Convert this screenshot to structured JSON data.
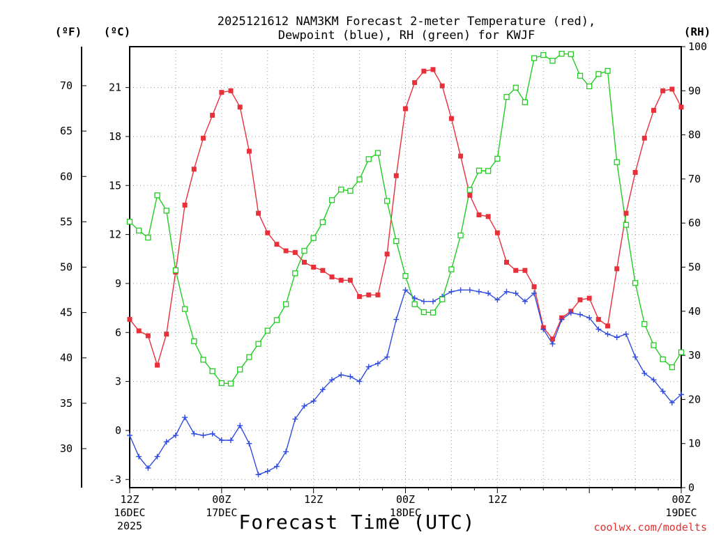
{
  "chart_data": {
    "type": "line",
    "title_line1": "2025121612 NAM3KM Forecast 2-meter Temperature (red),",
    "title_line2": "Dewpoint (blue), RH (green) for KWJF",
    "xlabel": "Forecast Time (UTC)",
    "credit": "coolwx.com/modelts",
    "units": {
      "fahrenheit": "(ºF)",
      "celsius": "(ºC)",
      "rh": "(RH)"
    },
    "x_hours_range": [
      0,
      72
    ],
    "ylim_celsius": [
      -3.5,
      23.5
    ],
    "ylim_rh": [
      0,
      100
    ],
    "x_ticks": [
      {
        "hour": 0,
        "line1": "12Z",
        "line2": "16DEC",
        "line3": "2025"
      },
      {
        "hour": 15,
        "line1": "00Z",
        "line2": "17DEC",
        "line3": ""
      },
      {
        "hour": 30,
        "line1": "12Z",
        "line2": "",
        "line3": ""
      },
      {
        "hour": 45,
        "line1": "00Z",
        "line2": "18DEC",
        "line3": ""
      },
      {
        "hour": 60,
        "line1": "12Z",
        "line2": "",
        "line3": ""
      },
      {
        "hour": 75,
        "line1": "00Z",
        "line2": "19DEC",
        "line3": ""
      }
    ],
    "celsius_ticks": [
      "-3",
      "0",
      "3",
      "6",
      "9",
      "12",
      "15",
      "18",
      "21"
    ],
    "fahrenheit_ticks": [
      "30",
      "35",
      "40",
      "45",
      "50",
      "55",
      "60",
      "65",
      "70"
    ],
    "rh_ticks": [
      "0",
      "10",
      "20",
      "30",
      "40",
      "50",
      "60",
      "70",
      "80",
      "90",
      "100"
    ],
    "series": [
      {
        "name": "2-meter Temperature (°C)",
        "color": "#e8303a",
        "marker": "filled-square",
        "values": [
          6.8,
          6.1,
          5.8,
          4.0,
          5.9,
          9.7,
          13.8,
          16.0,
          17.9,
          19.3,
          20.7,
          20.8,
          19.8,
          17.1,
          13.3,
          12.1,
          11.4,
          11.0,
          10.9,
          10.3,
          10.0,
          9.8,
          9.4,
          9.2,
          9.2,
          8.2,
          8.3,
          8.3,
          10.8,
          15.6,
          19.7,
          21.3,
          22.0,
          22.1,
          21.1,
          19.1,
          16.8,
          14.4,
          13.2,
          13.1,
          12.1,
          10.3,
          9.8,
          9.8,
          8.8,
          6.3,
          5.6,
          6.9,
          7.3,
          8.0,
          8.1,
          6.8,
          6.4,
          9.9,
          13.3,
          15.8,
          17.9,
          19.6,
          20.8,
          20.9,
          19.8
        ]
      },
      {
        "name": "Dewpoint (°C)",
        "color": "#2f4be0",
        "marker": "plus",
        "values": [
          -0.3,
          -1.6,
          -2.3,
          -1.6,
          -0.7,
          -0.3,
          0.8,
          -0.2,
          -0.3,
          -0.2,
          -0.6,
          -0.6,
          0.3,
          -0.8,
          -2.7,
          -2.5,
          -2.2,
          -1.3,
          0.7,
          1.5,
          1.8,
          2.5,
          3.1,
          3.4,
          3.3,
          3.0,
          3.9,
          4.1,
          4.5,
          6.8,
          8.6,
          8.1,
          7.9,
          7.9,
          8.2,
          8.5,
          8.6,
          8.6,
          8.5,
          8.4,
          8.0,
          8.5,
          8.4,
          7.9,
          8.4,
          6.2,
          5.3,
          6.8,
          7.2,
          7.1,
          6.9,
          6.2,
          5.9,
          5.7,
          5.9,
          4.5,
          3.5,
          3.1,
          2.4,
          1.7,
          2.2
        ]
      },
      {
        "name": "RH (%)",
        "color": "#22cc22",
        "marker": "open-square",
        "values": [
          60.3,
          58.3,
          56.7,
          66.3,
          62.8,
          49.3,
          40.5,
          33.2,
          29.0,
          26.4,
          23.7,
          23.6,
          26.8,
          29.6,
          32.6,
          35.6,
          38.0,
          41.6,
          48.6,
          53.7,
          56.6,
          60.2,
          65.2,
          67.6,
          67.3,
          69.9,
          74.5,
          75.9,
          65.0,
          55.9,
          48.0,
          41.6,
          39.8,
          39.7,
          42.7,
          49.5,
          57.2,
          67.5,
          71.9,
          71.8,
          74.6,
          88.6,
          90.7,
          87.4,
          97.4,
          98.1,
          96.8,
          98.4,
          98.3,
          93.4,
          91.0,
          93.8,
          94.5,
          73.8,
          59.6,
          46.4,
          37.1,
          32.3,
          29.1,
          27.3,
          30.7
        ]
      }
    ]
  }
}
